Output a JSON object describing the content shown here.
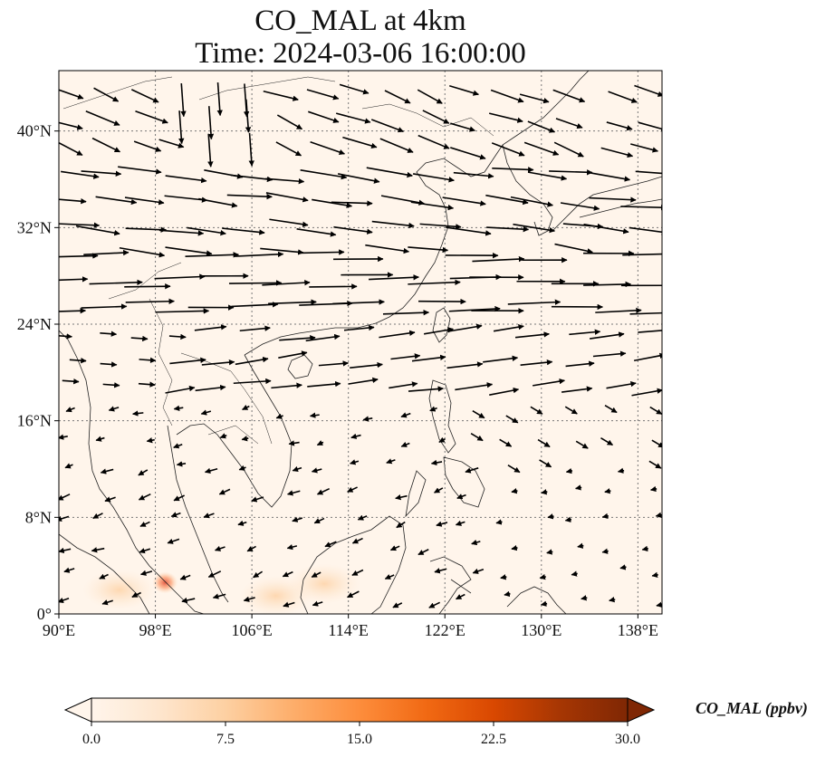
{
  "title": "CO_MAL at 4km",
  "subtitle": "Time: 2024-03-06 16:00:00",
  "map": {
    "lon_range": [
      90,
      140
    ],
    "lat_range": [
      0,
      45
    ],
    "lon_ticks": [
      90,
      98,
      106,
      114,
      122,
      130,
      138
    ],
    "lon_tick_labels": [
      "90°E",
      "98°E",
      "106°E",
      "114°E",
      "122°E",
      "130°E",
      "138°E"
    ],
    "lat_ticks": [
      0,
      8,
      16,
      24,
      32,
      40
    ],
    "lat_tick_labels": [
      "0°",
      "8°N",
      "16°N",
      "24°N",
      "32°N",
      "40°N"
    ],
    "gridlines": true,
    "background_color": "#fff5eb",
    "coastline_color": "#222222",
    "vector_color": "#000000",
    "hotspots": [
      {
        "lon": 98.8,
        "lat": 2.6,
        "value": 18
      },
      {
        "lon": 95.0,
        "lat": 2.0,
        "value": 5
      },
      {
        "lon": 108.0,
        "lat": 1.5,
        "value": 5
      },
      {
        "lon": 112.0,
        "lat": 2.5,
        "value": 4
      }
    ]
  },
  "colorbar": {
    "label": "CO_MAL (ppbv)",
    "min": 0,
    "max": 30,
    "ticks": [
      0,
      7.5,
      15,
      22.5,
      30
    ],
    "tick_labels": [
      "0.0",
      "7.5",
      "15.0",
      "22.5",
      "30.0"
    ],
    "colormap": [
      "#fff5eb",
      "#fee6ce",
      "#fdd0a2",
      "#fdae6b",
      "#fd8d3c",
      "#f16913",
      "#d94801",
      "#a63603",
      "#7f2704"
    ],
    "extend": "both"
  }
}
